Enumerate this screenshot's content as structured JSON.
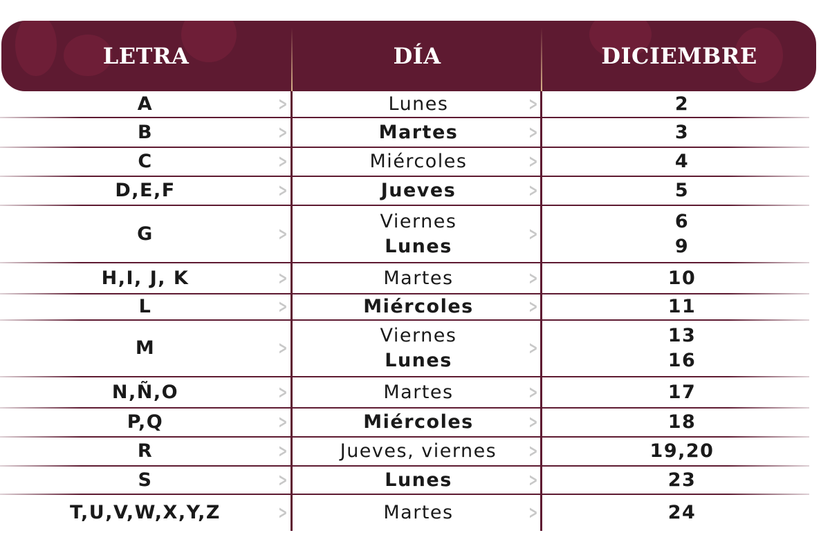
{
  "header": {
    "col_letter": "LETRA",
    "col_day": "DÍA",
    "col_month": "DICIEMBRE"
  },
  "colors": {
    "brand": "#5e1a31",
    "chevron": "#c8c8c8"
  },
  "rows": [
    {
      "letter": "A",
      "days": [
        {
          "text": "Lunes",
          "bold": false
        }
      ],
      "dates": [
        "2"
      ]
    },
    {
      "letter": "B",
      "days": [
        {
          "text": "Martes",
          "bold": true
        }
      ],
      "dates": [
        "3"
      ]
    },
    {
      "letter": "C",
      "days": [
        {
          "text": "Miércoles",
          "bold": false
        }
      ],
      "dates": [
        "4"
      ]
    },
    {
      "letter": "D,E,F",
      "days": [
        {
          "text": "Jueves",
          "bold": true
        }
      ],
      "dates": [
        "5"
      ]
    },
    {
      "letter": "G",
      "days": [
        {
          "text": "Viernes",
          "bold": false
        },
        {
          "text": "Lunes",
          "bold": true
        }
      ],
      "dates": [
        "6",
        "9"
      ]
    },
    {
      "letter": "H,I, J, K",
      "days": [
        {
          "text": "Martes",
          "bold": false
        }
      ],
      "dates": [
        "10"
      ]
    },
    {
      "letter": "L",
      "days": [
        {
          "text": "Miércoles",
          "bold": true
        }
      ],
      "dates": [
        "11"
      ]
    },
    {
      "letter": "M",
      "days": [
        {
          "text": "Viernes",
          "bold": false
        },
        {
          "text": "Lunes",
          "bold": true
        }
      ],
      "dates": [
        "13",
        "16"
      ]
    },
    {
      "letter": "N,Ñ,O",
      "days": [
        {
          "text": "Martes",
          "bold": false
        }
      ],
      "dates": [
        "17"
      ]
    },
    {
      "letter": "P,Q",
      "days": [
        {
          "text": "Miércoles",
          "bold": true
        }
      ],
      "dates": [
        "18"
      ]
    },
    {
      "letter": "R",
      "days": [
        {
          "text": "Jueves, viernes",
          "bold": false
        }
      ],
      "dates": [
        "19,20"
      ]
    },
    {
      "letter": "S",
      "days": [
        {
          "text": "Lunes",
          "bold": true
        }
      ],
      "dates": [
        "23"
      ]
    },
    {
      "letter": "T,U,V,W,X,Y,Z",
      "days": [
        {
          "text": "Martes",
          "bold": false
        }
      ],
      "dates": [
        "24"
      ]
    }
  ]
}
